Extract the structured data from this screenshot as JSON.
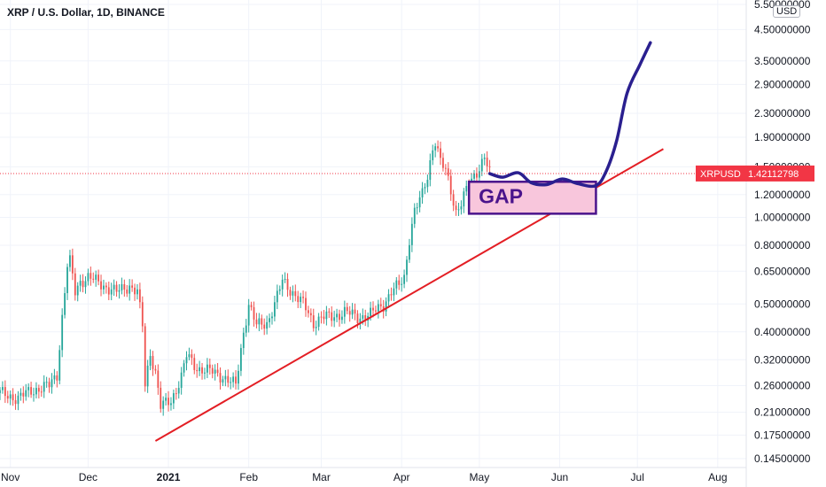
{
  "header": {
    "title": "XRP / U.S. Dollar, 1D, BINANCE",
    "currency": "USD"
  },
  "price_label": {
    "symbol": "XRPUSD",
    "value": "1.42112798",
    "color": "#f23645"
  },
  "annotation": {
    "gap_label": "GAP",
    "gap_box_top": 1.33,
    "gap_box_bottom": 1.03,
    "gap_box_from": "2021-04-27",
    "gap_box_to": "2021-06-15",
    "gap_fill": "#f8c6dc",
    "gap_stroke": "#4a148c",
    "gap_text_color": "#4a148c",
    "trendline": {
      "from": [
        "2020-12-27",
        0.167
      ],
      "to": [
        "2021-07-11",
        1.73
      ],
      "color": "#e31e24"
    },
    "projection_color": "#2a1f8f",
    "projection": [
      [
        "2021-05-05",
        1.42
      ],
      [
        "2021-05-10",
        1.38
      ],
      [
        "2021-05-16",
        1.43
      ],
      [
        "2021-05-21",
        1.32
      ],
      [
        "2021-05-27",
        1.3
      ],
      [
        "2021-06-02",
        1.36
      ],
      [
        "2021-06-08",
        1.31
      ],
      [
        "2021-06-15",
        1.29
      ],
      [
        "2021-06-19",
        1.45
      ],
      [
        "2021-06-23",
        1.85
      ],
      [
        "2021-06-27",
        2.7
      ],
      [
        "2021-07-02",
        3.4
      ],
      [
        "2021-07-06",
        4.05
      ]
    ]
  },
  "chart_data": {
    "type": "candlestick",
    "title": "XRP / U.S. Dollar, 1D, BINANCE",
    "y_scale": "log",
    "ylim": [
      0.135,
      5.7
    ],
    "xlim": [
      "2020-10-28",
      "2021-08-12"
    ],
    "up_color": "#26a69a",
    "down_color": "#ef5350",
    "last_price": 1.42112798,
    "y_ticks": [
      "5.50000000",
      "4.50000000",
      "3.50000000",
      "2.90000000",
      "2.30000000",
      "1.90000000",
      "1.50000000",
      "1.20000000",
      "1.00000000",
      "0.80000000",
      "0.65000000",
      "0.50000000",
      "0.40000000",
      "0.32000000",
      "0.26000000",
      "0.21000000",
      "0.17500000",
      "0.14500000"
    ],
    "x_ticks": [
      {
        "date": "2020-11-01",
        "label": "Nov"
      },
      {
        "date": "2020-12-01",
        "label": "Dec"
      },
      {
        "date": "2021-01-01",
        "label": "2021"
      },
      {
        "date": "2021-02-01",
        "label": "Feb"
      },
      {
        "date": "2021-03-01",
        "label": "Mar"
      },
      {
        "date": "2021-04-01",
        "label": "Apr"
      },
      {
        "date": "2021-05-01",
        "label": "May"
      },
      {
        "date": "2021-06-01",
        "label": "Jun"
      },
      {
        "date": "2021-07-01",
        "label": "Jul"
      },
      {
        "date": "2021-08-01",
        "label": "Aug"
      }
    ],
    "close_anchors": [
      [
        "2020-10-28",
        0.245
      ],
      [
        "2020-11-04",
        0.235
      ],
      [
        "2020-11-09",
        0.25
      ],
      [
        "2020-11-16",
        0.26
      ],
      [
        "2020-11-19",
        0.285
      ],
      [
        "2020-11-21",
        0.45
      ],
      [
        "2020-11-23",
        0.68
      ],
      [
        "2020-11-24",
        0.7
      ],
      [
        "2020-11-26",
        0.55
      ],
      [
        "2020-11-28",
        0.6
      ],
      [
        "2020-12-01",
        0.62
      ],
      [
        "2020-12-07",
        0.58
      ],
      [
        "2020-12-12",
        0.55
      ],
      [
        "2020-12-17",
        0.58
      ],
      [
        "2020-12-20",
        0.55
      ],
      [
        "2020-12-22",
        0.42
      ],
      [
        "2020-12-23",
        0.26
      ],
      [
        "2020-12-25",
        0.34
      ],
      [
        "2020-12-27",
        0.29
      ],
      [
        "2020-12-29",
        0.22
      ],
      [
        "2021-01-02",
        0.23
      ],
      [
        "2021-01-06",
        0.28
      ],
      [
        "2021-01-08",
        0.33
      ],
      [
        "2021-01-12",
        0.3
      ],
      [
        "2021-01-18",
        0.29
      ],
      [
        "2021-01-22",
        0.28
      ],
      [
        "2021-01-27",
        0.26
      ],
      [
        "2021-01-30",
        0.4
      ],
      [
        "2021-02-01",
        0.5
      ],
      [
        "2021-02-04",
        0.42
      ],
      [
        "2021-02-08",
        0.43
      ],
      [
        "2021-02-11",
        0.5
      ],
      [
        "2021-02-14",
        0.6
      ],
      [
        "2021-02-18",
        0.55
      ],
      [
        "2021-02-22",
        0.5
      ],
      [
        "2021-02-26",
        0.43
      ],
      [
        "2021-03-01",
        0.45
      ],
      [
        "2021-03-05",
        0.45
      ],
      [
        "2021-03-10",
        0.47
      ],
      [
        "2021-03-15",
        0.45
      ],
      [
        "2021-03-20",
        0.46
      ],
      [
        "2021-03-25",
        0.5
      ],
      [
        "2021-03-28",
        0.55
      ],
      [
        "2021-03-31",
        0.58
      ],
      [
        "2021-04-02",
        0.62
      ],
      [
        "2021-04-04",
        0.85
      ],
      [
        "2021-04-06",
        1.05
      ],
      [
        "2021-04-09",
        1.2
      ],
      [
        "2021-04-11",
        1.4
      ],
      [
        "2021-04-13",
        1.75
      ],
      [
        "2021-04-14",
        1.85
      ],
      [
        "2021-04-16",
        1.55
      ],
      [
        "2021-04-18",
        1.45
      ],
      [
        "2021-04-20",
        1.25
      ],
      [
        "2021-04-22",
        1.05
      ],
      [
        "2021-04-24",
        1.12
      ],
      [
        "2021-04-27",
        1.3
      ],
      [
        "2021-04-29",
        1.4
      ],
      [
        "2021-05-01",
        1.5
      ],
      [
        "2021-05-03",
        1.62
      ],
      [
        "2021-05-05",
        1.42
      ]
    ]
  }
}
